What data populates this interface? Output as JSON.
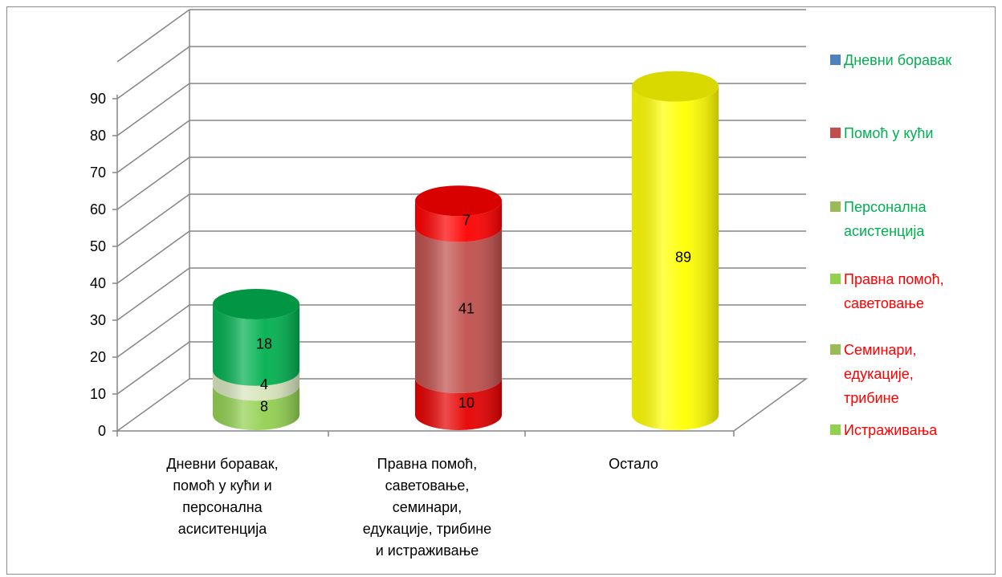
{
  "chart_data": {
    "type": "bar",
    "stacked": true,
    "style": "3d-cylinder",
    "title": "",
    "xlabel": "",
    "ylabel": "",
    "ylim": [
      0,
      90
    ],
    "yticks": [
      0,
      10,
      20,
      30,
      40,
      50,
      60,
      70,
      80,
      90
    ],
    "grid": true,
    "legend_position": "right",
    "categories": [
      "Дневни боравак, помоћ у кући и персонална асиситенција",
      "Правна помоћ, саветовање, семинари, едукације, трибине и истраживање",
      "Остало"
    ],
    "category_label_lines": [
      [
        "Дневни боравак,",
        "помоћ у кући и",
        "персонална",
        "асиситенција"
      ],
      [
        "Правна помоћ,",
        "саветовање,",
        "семинари,",
        "едукације, трибине",
        "и истраживање"
      ],
      [
        "Остало"
      ]
    ],
    "segments": [
      {
        "category": 0,
        "value": 8,
        "label": "8",
        "color": "#92d050"
      },
      {
        "category": 0,
        "value": 4,
        "label": "4",
        "color": "#d7e4bd"
      },
      {
        "category": 0,
        "value": 18,
        "label": "18",
        "color": "#00b050"
      },
      {
        "category": 1,
        "value": 10,
        "label": "10",
        "color": "#e60000"
      },
      {
        "category": 1,
        "value": 41,
        "label": "41",
        "color": "#c0504d"
      },
      {
        "category": 1,
        "value": 7,
        "label": "7",
        "color": "#ff0000"
      },
      {
        "category": 2,
        "value": 89,
        "label": "89",
        "color": "#ffff00"
      }
    ],
    "legend": [
      {
        "lines": [
          "Дневни боравак"
        ],
        "marker_color": "#4f81bd",
        "text_color": "#00b050"
      },
      {
        "lines": [
          "Помоћ у кући"
        ],
        "marker_color": "#c0504d",
        "text_color": "#00b050"
      },
      {
        "lines": [
          "Персонална",
          "асистенција"
        ],
        "marker_color": "#9bbb59",
        "text_color": "#00b050"
      },
      {
        "lines": [
          "Правна помоћ,",
          "саветовање"
        ],
        "marker_color": "#92d050",
        "text_color": "#ff0000"
      },
      {
        "lines": [
          "Семинари,",
          "едукације,",
          "трибине"
        ],
        "marker_color": "#9bbb59",
        "text_color": "#ff0000"
      },
      {
        "lines": [
          "Истраживања"
        ],
        "marker_color": "#92d050",
        "text_color": "#ff0000"
      }
    ]
  }
}
